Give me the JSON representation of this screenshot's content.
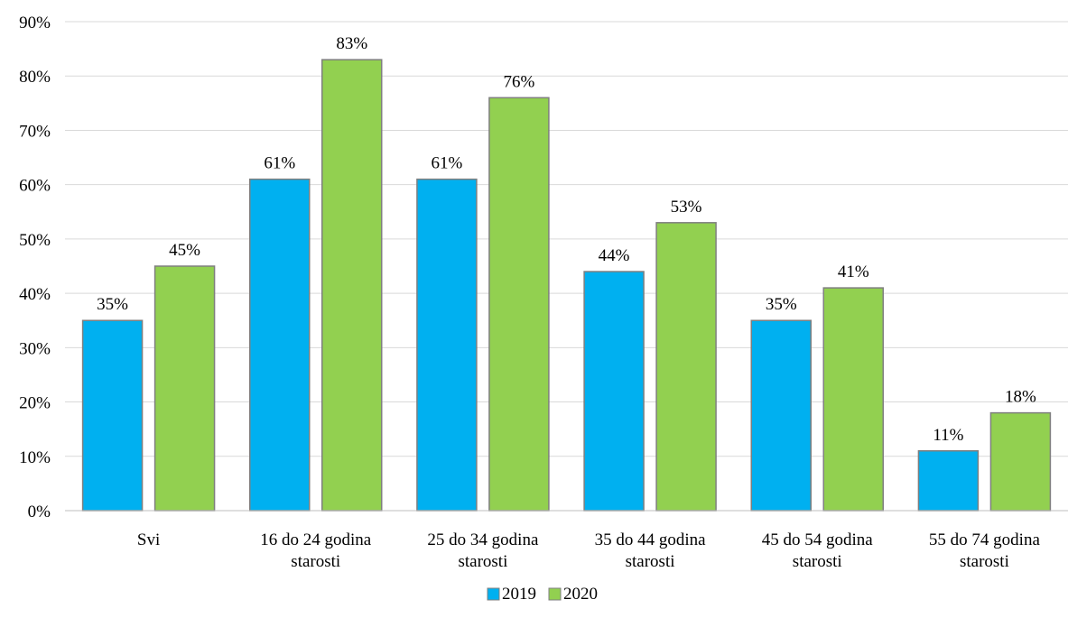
{
  "chart_data": {
    "type": "bar",
    "title": "",
    "xlabel": "",
    "ylabel": "",
    "categories": [
      [
        "Svi"
      ],
      [
        "16 do 24 godina",
        "starosti"
      ],
      [
        "25 do 34 godina",
        "starosti"
      ],
      [
        "35 do 44 godina",
        "starosti"
      ],
      [
        "45 do 54 godina",
        "starosti"
      ],
      [
        "55 do 74 godina",
        "starosti"
      ]
    ],
    "series": [
      {
        "name": "2019",
        "color": "#00b0f0",
        "values": [
          35,
          61,
          61,
          44,
          35,
          11
        ],
        "labels": [
          "35%",
          "61%",
          "61%",
          "44%",
          "35%",
          "11%"
        ]
      },
      {
        "name": "2020",
        "color": "#92d050",
        "values": [
          45,
          83,
          76,
          53,
          41,
          18
        ],
        "labels": [
          "45%",
          "83%",
          "76%",
          "53%",
          "41%",
          "18%"
        ]
      }
    ],
    "ylim": [
      0,
      90
    ],
    "yticks": [
      0,
      10,
      20,
      30,
      40,
      50,
      60,
      70,
      80,
      90
    ],
    "ytick_labels": [
      "0%",
      "10%",
      "20%",
      "30%",
      "40%",
      "50%",
      "60%",
      "70%",
      "80%",
      "90%"
    ],
    "grid": true,
    "legend_position": "bottom"
  }
}
